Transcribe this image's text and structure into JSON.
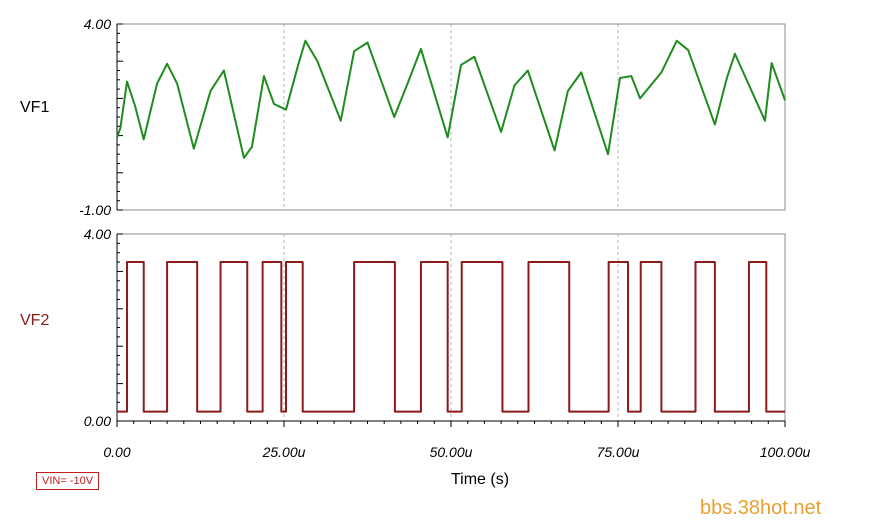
{
  "chart_data": [
    {
      "type": "line",
      "channel_label": "VF1",
      "color": "#1e8c1e",
      "ylim": [
        -1.0,
        4.0
      ],
      "y_tick_labels": [
        "4.00",
        "-1.00"
      ],
      "x": [
        0,
        0.5,
        1.5,
        2.7,
        4.0,
        6.0,
        7.5,
        9.0,
        11.5,
        14.0,
        16.0,
        19.0,
        20.2,
        22.0,
        23.5,
        25.3,
        27.2,
        28.2,
        30.0,
        33.5,
        35.5,
        37.5,
        41.5,
        43.5,
        45.5,
        49.5,
        51.5,
        53.5,
        57.5,
        59.5,
        61.5,
        65.5,
        67.5,
        69.5,
        73.5,
        75.3,
        77.0,
        78.3,
        81.5,
        83.8,
        85.5,
        89.5,
        91.3,
        92.5,
        97.0,
        98.0,
        100.0
      ],
      "y": [
        0.95,
        1.2,
        2.45,
        1.8,
        0.9,
        2.4,
        2.93,
        2.4,
        0.65,
        2.2,
        2.75,
        0.4,
        0.7,
        2.6,
        1.85,
        1.7,
        2.95,
        3.55,
        3.0,
        1.4,
        3.27,
        3.5,
        1.5,
        2.4,
        3.33,
        0.95,
        2.9,
        3.12,
        1.1,
        2.35,
        2.75,
        0.6,
        2.2,
        2.7,
        0.5,
        2.55,
        2.6,
        2.0,
        2.7,
        3.55,
        3.3,
        1.3,
        2.55,
        3.2,
        1.4,
        2.95,
        1.95
      ],
      "ylabel": "VF1"
    },
    {
      "type": "line",
      "channel_label": "VF2",
      "color": "#8b1a1a",
      "ylim": [
        0.0,
        4.0
      ],
      "y_tick_labels": [
        "4.00",
        "0.00"
      ],
      "x": [
        0,
        1.5,
        1.5,
        4.0,
        4.0,
        7.5,
        7.5,
        12.0,
        12.0,
        15.5,
        15.5,
        19.5,
        19.5,
        21.8,
        21.8,
        24.6,
        24.6,
        25.3,
        25.3,
        27.8,
        27.8,
        35.5,
        35.5,
        41.6,
        41.6,
        45.5,
        45.5,
        49.5,
        49.5,
        51.6,
        51.6,
        57.7,
        57.7,
        61.6,
        61.6,
        67.7,
        67.7,
        73.6,
        73.6,
        76.5,
        76.5,
        78.4,
        78.4,
        81.5,
        81.5,
        86.6,
        86.6,
        89.5,
        89.5,
        94.6,
        94.6,
        97.2,
        97.2,
        100.0
      ],
      "y": [
        0.2,
        0.2,
        3.4,
        3.4,
        0.2,
        0.2,
        3.4,
        3.4,
        0.2,
        0.2,
        3.4,
        3.4,
        0.2,
        0.2,
        3.4,
        3.4,
        0.2,
        0.2,
        3.4,
        3.4,
        0.2,
        0.2,
        3.4,
        3.4,
        0.2,
        0.2,
        3.4,
        3.4,
        0.2,
        0.2,
        3.4,
        3.4,
        0.2,
        0.2,
        3.4,
        3.4,
        0.2,
        0.2,
        3.4,
        3.4,
        0.2,
        0.2,
        3.4,
        3.4,
        0.2,
        0.2,
        3.4,
        3.4,
        0.2,
        0.2,
        3.4,
        3.4,
        0.2,
        0.2
      ],
      "ylabel": "VF2"
    }
  ],
  "x_axis": {
    "xlim": [
      0,
      100
    ],
    "tick_values": [
      0,
      25,
      50,
      75,
      100
    ],
    "tick_labels": [
      "0.00",
      "25.00u",
      "50.00u",
      "75.00u",
      "100.00u"
    ],
    "xlabel": "Time (s)"
  },
  "parameter_label": "VIN= -10V",
  "watermark": "bbs.38hot.net",
  "colors": {
    "frame": "#8c8c8c",
    "gridline": "#b4b4b4",
    "vf1_trace": "#1e8c1e",
    "vf2_trace": "#8b1a1a",
    "vf2_label": "#8b1a1a",
    "param_box": "#c02020",
    "watermark": "#e8a030"
  }
}
